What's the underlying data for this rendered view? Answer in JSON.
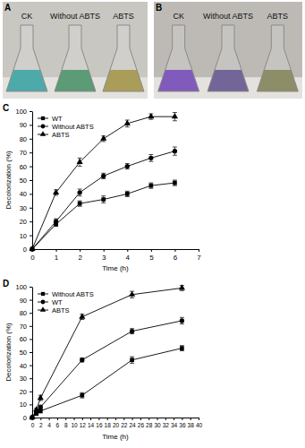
{
  "photos": [
    {
      "label": "A",
      "captions": [
        "CK",
        "Without ABTS",
        "ABTS"
      ]
    },
    {
      "label": "B",
      "captions": [
        "CK",
        "Without ABTS",
        "ABTS"
      ]
    }
  ],
  "chart_data": [
    {
      "type": "line",
      "title": "C",
      "x_label": "Time (h)",
      "y_label": "Decolorization (%)",
      "x": [
        0,
        1,
        2,
        3,
        4,
        5,
        6
      ],
      "xlim": [
        0,
        7
      ],
      "xticks": [
        0,
        1,
        2,
        3,
        4,
        5,
        6,
        7
      ],
      "ylim": [
        0,
        100
      ],
      "yticks": [
        0,
        10,
        20,
        30,
        40,
        50,
        60,
        70,
        80,
        90,
        100
      ],
      "legend": "upper left",
      "series": [
        {
          "name": "WT",
          "color": "#000000",
          "marker": "square",
          "values": [
            0,
            18,
            33,
            36,
            40,
            46,
            48
          ],
          "errors": [
            0,
            1.5,
            2,
            2.5,
            2,
            2,
            2
          ]
        },
        {
          "name": "Without ABTS",
          "color": "#000000",
          "marker": "circle",
          "values": [
            0,
            20,
            41,
            53,
            60,
            66,
            71
          ],
          "errors": [
            0,
            2,
            2.5,
            2,
            2,
            2.5,
            3
          ]
        },
        {
          "name": "ABTS",
          "color": "#000000",
          "marker": "triangle",
          "values": [
            0,
            41,
            63,
            80,
            91,
            96,
            96
          ],
          "errors": [
            0,
            2,
            3,
            2,
            2.5,
            2,
            3
          ]
        }
      ]
    },
    {
      "type": "line",
      "title": "D",
      "x_label": "Time (h)",
      "y_label": "Decolorization (%)",
      "x": [
        0,
        1,
        2,
        12,
        24,
        36
      ],
      "xlim": [
        0,
        40
      ],
      "xticks": [
        0,
        2,
        4,
        6,
        8,
        10,
        12,
        14,
        16,
        18,
        20,
        22,
        24,
        26,
        28,
        30,
        32,
        34,
        36,
        38,
        40
      ],
      "ylim": [
        0,
        100
      ],
      "yticks": [
        0,
        10,
        20,
        30,
        40,
        50,
        60,
        70,
        80,
        90,
        100
      ],
      "legend": "upper left",
      "series": [
        {
          "name": "Without ABTS",
          "color": "#000000",
          "marker": "square",
          "values": [
            0,
            3,
            5,
            17,
            44,
            53
          ],
          "errors": [
            0,
            1,
            1.5,
            2,
            2.5,
            2
          ]
        },
        {
          "name": "WT",
          "color": "#000000",
          "marker": "circle",
          "values": [
            0,
            4,
            8,
            44,
            66,
            74
          ],
          "errors": [
            0,
            1,
            1.5,
            1.5,
            2,
            2.5
          ]
        },
        {
          "name": "ABTS",
          "color": "#000000",
          "marker": "triangle",
          "values": [
            0,
            6,
            15,
            77,
            94,
            99
          ],
          "errors": [
            0,
            1,
            2,
            2,
            2.5,
            2
          ]
        }
      ]
    }
  ]
}
